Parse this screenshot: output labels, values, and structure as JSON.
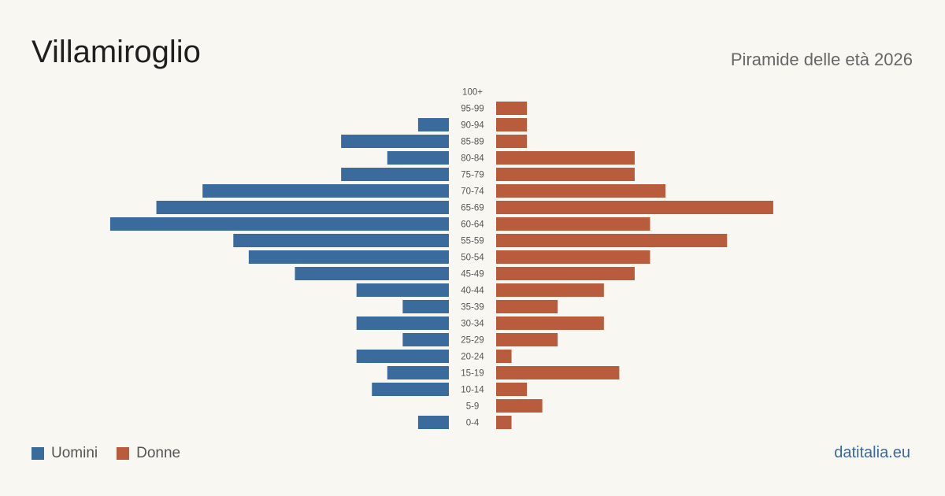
{
  "header": {
    "title": "Villamiroglio",
    "subtitle": "Piramide delle età 2026"
  },
  "legend": {
    "men_label": "Uomini",
    "women_label": "Donne"
  },
  "source": "datitalia.eu",
  "colors": {
    "men": "#3b6a9c",
    "women": "#b95c3d",
    "background": "#f9f7f2",
    "tick_label": "#555555"
  },
  "chart_data": {
    "type": "bar",
    "orientation": "horizontal-pyramid",
    "categories": [
      "100+",
      "95-99",
      "90-94",
      "85-89",
      "80-84",
      "75-79",
      "70-74",
      "65-69",
      "60-64",
      "55-59",
      "50-54",
      "45-49",
      "40-44",
      "35-39",
      "30-34",
      "25-29",
      "20-24",
      "15-19",
      "10-14",
      "5-9",
      "0-4"
    ],
    "series": [
      {
        "name": "Uomini",
        "values": [
          0,
          0,
          2,
          7,
          4,
          7,
          16,
          19,
          22,
          14,
          13,
          10,
          6,
          3,
          6,
          3,
          6,
          4,
          5,
          0,
          2
        ]
      },
      {
        "name": "Donne",
        "values": [
          0,
          2,
          2,
          2,
          9,
          9,
          11,
          18,
          10,
          15,
          10,
          9,
          7,
          4,
          7,
          4,
          1,
          8,
          2,
          3,
          1
        ]
      }
    ],
    "grid": false,
    "legend_position": "bottom-left"
  }
}
